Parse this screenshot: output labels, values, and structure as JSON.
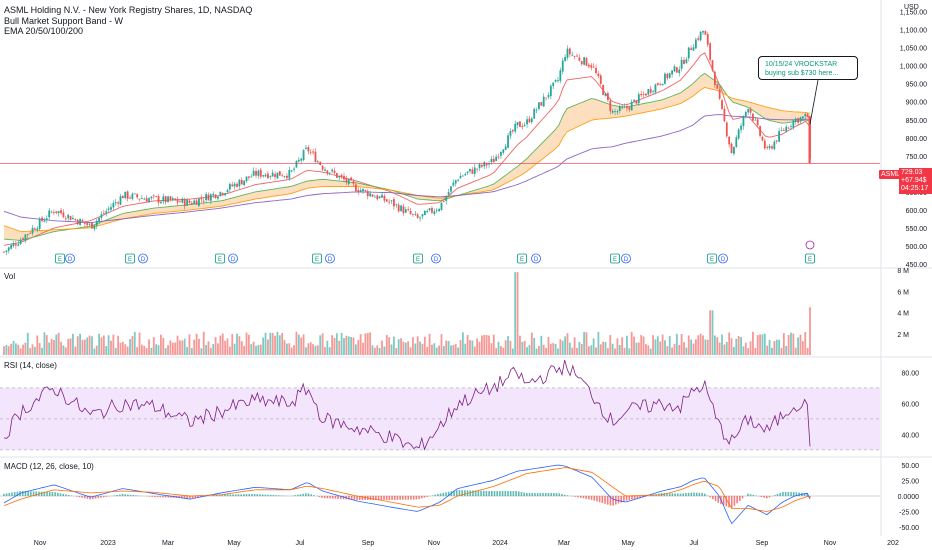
{
  "legend": {
    "symbol": "ASML Holding N.V. - New York Registry Shares, 1D, NASDAQ",
    "indicator1": "Bull Market Support Band - W",
    "indicator2": "EMA 20/50/100/200"
  },
  "currency": "USD",
  "ticker": "ASML",
  "last_price": {
    "price": "729.03",
    "change": "+67.94$",
    "countdown": "04:25:17"
  },
  "callout": {
    "line1": "10/15/24 VROCKSTAR",
    "line2": "buying sub $730 here..."
  },
  "panes": {
    "volume": {
      "label": "Vol"
    },
    "rsi": {
      "label": "RSI (14, close)"
    },
    "macd": {
      "label": "MACD (12, 26, close, 10)"
    }
  },
  "colors": {
    "up": "#26a69a",
    "down": "#ef5350",
    "ema20": "#ef5350",
    "ema50": "#4caf50",
    "ema100": "#ff9800",
    "ema200": "#7e57c2",
    "band_fill": "#f7c58a",
    "rsi_line": "#7e1f86",
    "rsi_band": "#f3e5fb",
    "macd_line": "#2962ff",
    "signal_line": "#ff6d00",
    "last_price": "#f23645"
  },
  "chart_data": [
    {
      "type": "candlestick",
      "title": "ASML Holding N.V. - New York Registry Shares, 1D, NASDAQ",
      "y_ticks": [
        "1,150.00",
        "1,100.00",
        "1,050.00",
        "1,000.00",
        "950.00",
        "900.00",
        "850.00",
        "800.00",
        "750.00",
        "700.00",
        "650.00",
        "600.00",
        "550.00",
        "500.00",
        "450.00"
      ],
      "ylim": [
        450,
        1160
      ],
      "x_ticks": [
        "Nov",
        "2023",
        "Mar",
        "May",
        "Jul",
        "Sep",
        "Nov",
        "2024",
        "Mar",
        "May",
        "Jul",
        "Sep",
        "Nov",
        "202"
      ],
      "last_price": 729.03,
      "series": [
        {
          "name": "Price",
          "x": [
            "2022-10-13",
            "2022-11-01",
            "2022-12-01",
            "2023-01-03",
            "2023-02-01",
            "2023-03-01",
            "2023-04-03",
            "2023-05-01",
            "2023-06-01",
            "2023-07-03",
            "2023-07-18",
            "2023-08-01",
            "2023-09-01",
            "2023-10-02",
            "2023-10-26",
            "2023-11-15",
            "2023-12-01",
            "2024-01-02",
            "2024-01-24",
            "2024-02-01",
            "2024-03-01",
            "2024-03-08",
            "2024-04-01",
            "2024-04-19",
            "2024-05-01",
            "2024-06-03",
            "2024-06-20",
            "2024-07-01",
            "2024-07-11",
            "2024-07-25",
            "2024-08-05",
            "2024-08-20",
            "2024-09-06",
            "2024-09-20",
            "2024-10-01",
            "2024-10-14",
            "2024-10-15"
          ],
          "close": [
            475,
            520,
            600,
            555,
            640,
            630,
            620,
            650,
            700,
            700,
            770,
            720,
            660,
            620,
            575,
            610,
            690,
            735,
            835,
            840,
            960,
            1040,
            1000,
            870,
            880,
            960,
            1000,
            1060,
            1100,
            900,
            760,
            890,
            760,
            820,
            850,
            860,
            729
          ]
        },
        {
          "name": "EMA 20",
          "values": [
            500,
            510,
            550,
            570,
            610,
            625,
            630,
            640,
            670,
            685,
            710,
            705,
            680,
            650,
            615,
            620,
            660,
            700,
            780,
            800,
            900,
            960,
            970,
            900,
            890,
            930,
            960,
            1000,
            1040,
            950,
            850,
            860,
            800,
            810,
            830,
            850,
            830
          ]
        },
        {
          "name": "EMA 50",
          "values": [
            520,
            515,
            540,
            555,
            590,
            605,
            615,
            625,
            650,
            665,
            680,
            685,
            675,
            655,
            630,
            625,
            640,
            670,
            720,
            740,
            830,
            880,
            910,
            890,
            885,
            905,
            925,
            950,
            980,
            950,
            900,
            885,
            850,
            840,
            845,
            850,
            845
          ]
        },
        {
          "name": "EMA 100",
          "values": [
            560,
            540,
            545,
            550,
            575,
            590,
            600,
            610,
            630,
            645,
            660,
            665,
            665,
            655,
            640,
            632,
            640,
            655,
            690,
            705,
            775,
            815,
            850,
            855,
            860,
            880,
            895,
            915,
            940,
            930,
            910,
            900,
            885,
            875,
            872,
            870,
            868
          ]
        },
        {
          "name": "EMA 200",
          "values": [
            600,
            580,
            570,
            565,
            575,
            585,
            595,
            605,
            620,
            630,
            640,
            645,
            650,
            648,
            640,
            636,
            640,
            650,
            670,
            680,
            720,
            740,
            770,
            775,
            785,
            805,
            820,
            835,
            860,
            865,
            860,
            858,
            852,
            850,
            850,
            852,
            852
          ]
        }
      ]
    },
    {
      "type": "bar",
      "title": "Vol",
      "y_ticks": [
        "8 M",
        "6 M",
        "4 M",
        "2 M"
      ],
      "ylim": [
        0,
        8
      ],
      "annotations": [
        "spike ~8M at 2024-01-24",
        "spike ~4.5M at 2024-10-15"
      ]
    },
    {
      "type": "line",
      "title": "RSI (14, close)",
      "y_ticks": [
        "80.00",
        "60.00",
        "40.00"
      ],
      "ylim": [
        28,
        88
      ],
      "bands": [
        30,
        70
      ],
      "values": [
        35,
        55,
        70,
        52,
        60,
        58,
        48,
        55,
        62,
        60,
        70,
        50,
        44,
        38,
        30,
        45,
        60,
        70,
        80,
        72,
        82,
        85,
        66,
        48,
        55,
        60,
        58,
        68,
        72,
        45,
        35,
        50,
        42,
        52,
        60,
        58,
        36
      ]
    },
    {
      "type": "line",
      "title": "MACD (12, 26, close, 10)",
      "y_ticks": [
        "50.00",
        "25.00",
        "0.0000",
        "-25.00",
        "-50.00"
      ],
      "ylim": [
        -58,
        58
      ],
      "series": [
        {
          "name": "MACD",
          "values": [
            -15,
            5,
            18,
            -2,
            12,
            4,
            -5,
            5,
            14,
            10,
            22,
            8,
            -8,
            -18,
            -25,
            -10,
            12,
            25,
            40,
            42,
            50,
            48,
            30,
            -5,
            -10,
            8,
            15,
            25,
            30,
            0,
            -45,
            -15,
            -30,
            -10,
            0,
            5,
            -5
          ]
        },
        {
          "name": "Signal",
          "values": [
            -18,
            -5,
            10,
            5,
            8,
            6,
            0,
            2,
            10,
            10,
            16,
            12,
            0,
            -10,
            -18,
            -15,
            0,
            15,
            30,
            36,
            44,
            46,
            38,
            15,
            0,
            2,
            10,
            18,
            24,
            15,
            -20,
            -20,
            -25,
            -18,
            -8,
            0,
            -2
          ]
        }
      ]
    }
  ]
}
